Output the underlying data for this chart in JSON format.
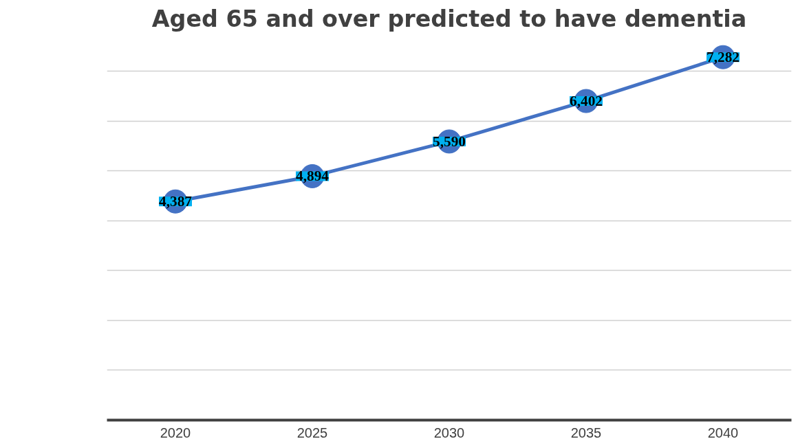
{
  "chart_data": {
    "type": "line",
    "title": "Aged 65 and over predicted to have dementia",
    "categories": [
      "2020",
      "2025",
      "2030",
      "2035",
      "2040"
    ],
    "series": [
      {
        "color": "#4472c4",
        "values": [
          4387,
          4894,
          5590,
          6402,
          7282
        ],
        "value_labels": [
          "4,387",
          "4,894",
          "5,590",
          "6,402",
          "7,282"
        ]
      }
    ],
    "tick_labels": "x",
    "grid": "y",
    "marker": "circle",
    "line_style": "solid"
  }
}
